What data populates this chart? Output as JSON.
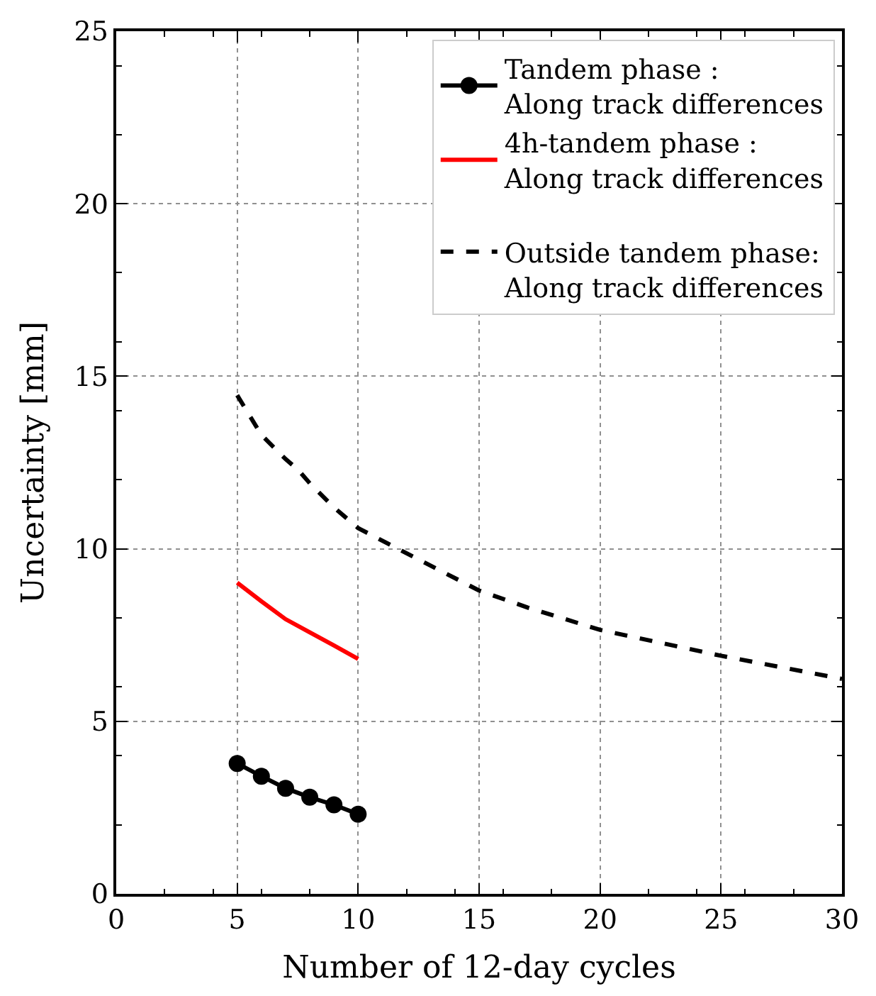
{
  "chart_data": {
    "type": "line",
    "xlabel": "Number of 12-day cycles",
    "ylabel": "Uncertainty [mm]",
    "xlim": [
      0,
      30
    ],
    "xticks": [
      0,
      5,
      10,
      15,
      20,
      25,
      30
    ],
    "ylim": [
      0,
      25
    ],
    "yticks": [
      0,
      5,
      10,
      15,
      20,
      25
    ],
    "grid": true,
    "legend": "top right",
    "series": [
      {
        "name": "Tandem phase :\nAlong track differences",
        "color": "#000000",
        "marker": "circle",
        "line_style": "solid",
        "x": [
          5,
          6,
          7,
          8,
          9,
          10
        ],
        "values": [
          3.78,
          3.41,
          3.06,
          2.8,
          2.58,
          2.31
        ]
      },
      {
        "name": "4h-tandem phase :\nAlong track differences",
        "color": "#ff0000",
        "marker": "none",
        "line_style": "solid",
        "x": [
          5,
          6,
          7,
          8,
          9,
          10
        ],
        "values": [
          9.02,
          8.48,
          7.96,
          7.58,
          7.2,
          6.81
        ]
      },
      {
        "name": "\nOutside tandem phase:\nAlong track differences",
        "color": "#000000",
        "marker": "none",
        "line_style": "dashed",
        "x": [
          5,
          6,
          7,
          7.5,
          8,
          9,
          10,
          12,
          15,
          17,
          20,
          25,
          30
        ],
        "values": [
          14.45,
          13.3,
          12.6,
          12.3,
          11.9,
          11.2,
          10.6,
          9.87,
          8.79,
          8.3,
          7.65,
          6.9,
          6.23
        ]
      }
    ]
  }
}
